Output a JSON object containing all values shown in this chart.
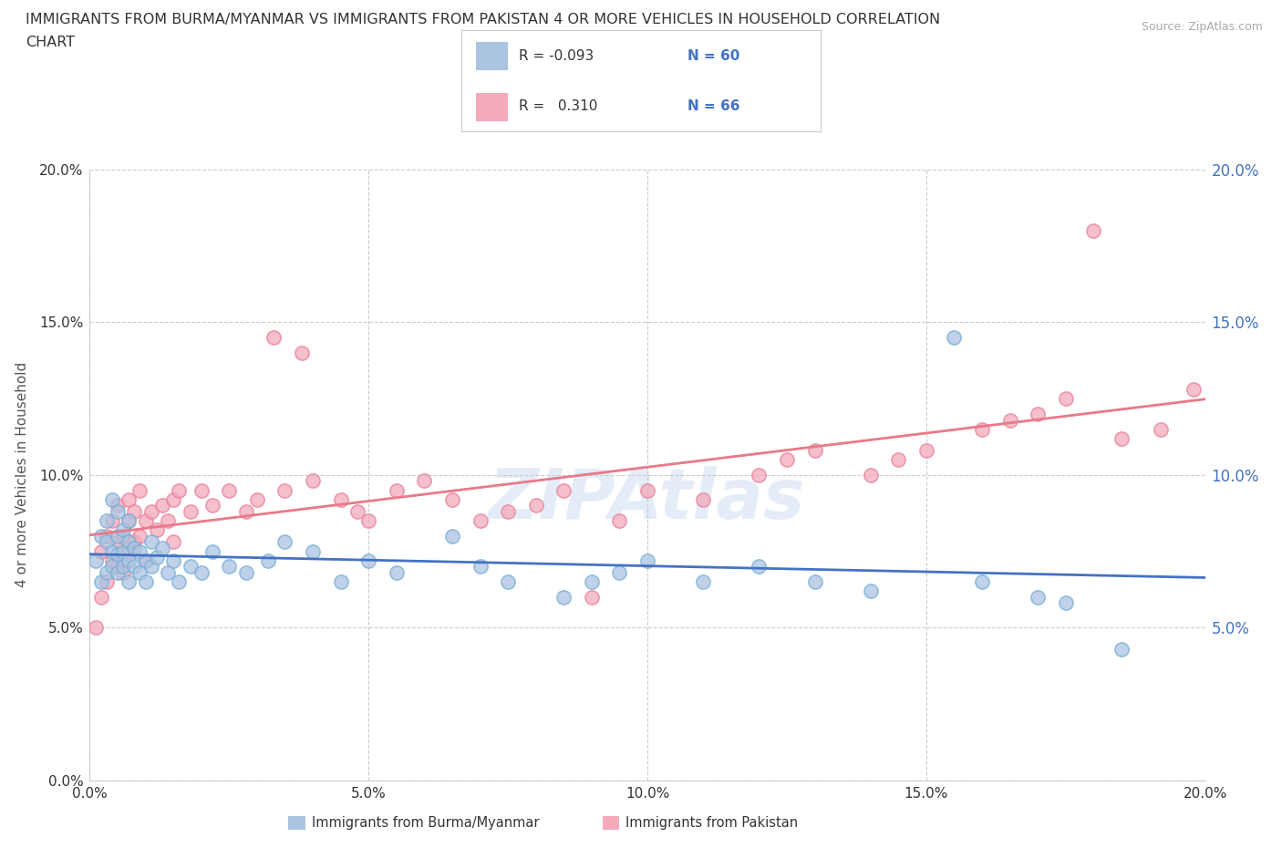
{
  "title_line1": "IMMIGRANTS FROM BURMA/MYANMAR VS IMMIGRANTS FROM PAKISTAN 4 OR MORE VEHICLES IN HOUSEHOLD CORRELATION",
  "title_line2": "CHART",
  "source_text": "Source: ZipAtlas.com",
  "ylabel": "4 or more Vehicles in Household",
  "xlim": [
    0.0,
    0.2
  ],
  "ylim": [
    0.0,
    0.2
  ],
  "xticks": [
    0.0,
    0.05,
    0.1,
    0.15,
    0.2
  ],
  "yticks": [
    0.0,
    0.05,
    0.1,
    0.15,
    0.2
  ],
  "xticklabels": [
    "0.0%",
    "5.0%",
    "10.0%",
    "15.0%",
    "20.0%"
  ],
  "yticklabels": [
    "0.0%",
    "5.0%",
    "10.0%",
    "15.0%",
    "20.0%"
  ],
  "right_yticklabels": [
    "5.0%",
    "10.0%",
    "15.0%",
    "20.0%"
  ],
  "right_yticks": [
    0.05,
    0.1,
    0.15,
    0.2
  ],
  "color_burma": "#aac4e2",
  "color_pakistan": "#f4aabb",
  "line_color_burma": "#4472c4",
  "line_color_pakistan": "#e87a8a",
  "scatter_edge_burma": "#7bafd4",
  "scatter_edge_pakistan": "#e8829a",
  "legend_r1": "R = -0.093",
  "legend_n1": "N = 60",
  "legend_r2": "R =   0.310",
  "legend_n2": "N = 66",
  "watermark": "ZIPAtlas",
  "legend_label1": "Immigrants from Burma/Myanmar",
  "legend_label2": "Immigrants from Pakistan",
  "burma_points_x": [
    0.001,
    0.002,
    0.002,
    0.003,
    0.003,
    0.003,
    0.004,
    0.004,
    0.004,
    0.005,
    0.005,
    0.005,
    0.005,
    0.006,
    0.006,
    0.006,
    0.007,
    0.007,
    0.007,
    0.007,
    0.008,
    0.008,
    0.009,
    0.009,
    0.01,
    0.01,
    0.011,
    0.011,
    0.012,
    0.013,
    0.014,
    0.015,
    0.016,
    0.018,
    0.02,
    0.022,
    0.025,
    0.028,
    0.032,
    0.035,
    0.04,
    0.045,
    0.05,
    0.055,
    0.065,
    0.07,
    0.075,
    0.085,
    0.09,
    0.095,
    0.1,
    0.11,
    0.12,
    0.13,
    0.14,
    0.155,
    0.16,
    0.17,
    0.175,
    0.185
  ],
  "burma_points_y": [
    0.072,
    0.065,
    0.08,
    0.068,
    0.078,
    0.085,
    0.07,
    0.075,
    0.092,
    0.068,
    0.074,
    0.08,
    0.088,
    0.07,
    0.075,
    0.082,
    0.065,
    0.072,
    0.078,
    0.085,
    0.07,
    0.076,
    0.068,
    0.075,
    0.065,
    0.072,
    0.07,
    0.078,
    0.073,
    0.076,
    0.068,
    0.072,
    0.065,
    0.07,
    0.068,
    0.075,
    0.07,
    0.068,
    0.072,
    0.078,
    0.075,
    0.065,
    0.072,
    0.068,
    0.08,
    0.07,
    0.065,
    0.06,
    0.065,
    0.068,
    0.072,
    0.065,
    0.07,
    0.065,
    0.062,
    0.145,
    0.065,
    0.06,
    0.058,
    0.043
  ],
  "pakistan_points_x": [
    0.001,
    0.002,
    0.002,
    0.003,
    0.003,
    0.004,
    0.004,
    0.005,
    0.005,
    0.005,
    0.006,
    0.006,
    0.007,
    0.007,
    0.007,
    0.008,
    0.008,
    0.009,
    0.009,
    0.01,
    0.01,
    0.011,
    0.012,
    0.013,
    0.014,
    0.015,
    0.015,
    0.016,
    0.018,
    0.02,
    0.022,
    0.025,
    0.028,
    0.03,
    0.033,
    0.035,
    0.038,
    0.04,
    0.045,
    0.048,
    0.05,
    0.055,
    0.06,
    0.065,
    0.07,
    0.075,
    0.08,
    0.085,
    0.09,
    0.095,
    0.1,
    0.11,
    0.12,
    0.125,
    0.13,
    0.14,
    0.145,
    0.15,
    0.16,
    0.165,
    0.17,
    0.175,
    0.18,
    0.185,
    0.192,
    0.198
  ],
  "pakistan_points_y": [
    0.05,
    0.06,
    0.075,
    0.065,
    0.08,
    0.072,
    0.085,
    0.07,
    0.078,
    0.09,
    0.068,
    0.08,
    0.075,
    0.085,
    0.092,
    0.078,
    0.088,
    0.08,
    0.095,
    0.072,
    0.085,
    0.088,
    0.082,
    0.09,
    0.085,
    0.092,
    0.078,
    0.095,
    0.088,
    0.095,
    0.09,
    0.095,
    0.088,
    0.092,
    0.145,
    0.095,
    0.14,
    0.098,
    0.092,
    0.088,
    0.085,
    0.095,
    0.098,
    0.092,
    0.085,
    0.088,
    0.09,
    0.095,
    0.06,
    0.085,
    0.095,
    0.092,
    0.1,
    0.105,
    0.108,
    0.1,
    0.105,
    0.108,
    0.115,
    0.118,
    0.12,
    0.125,
    0.18,
    0.112,
    0.115,
    0.128
  ]
}
